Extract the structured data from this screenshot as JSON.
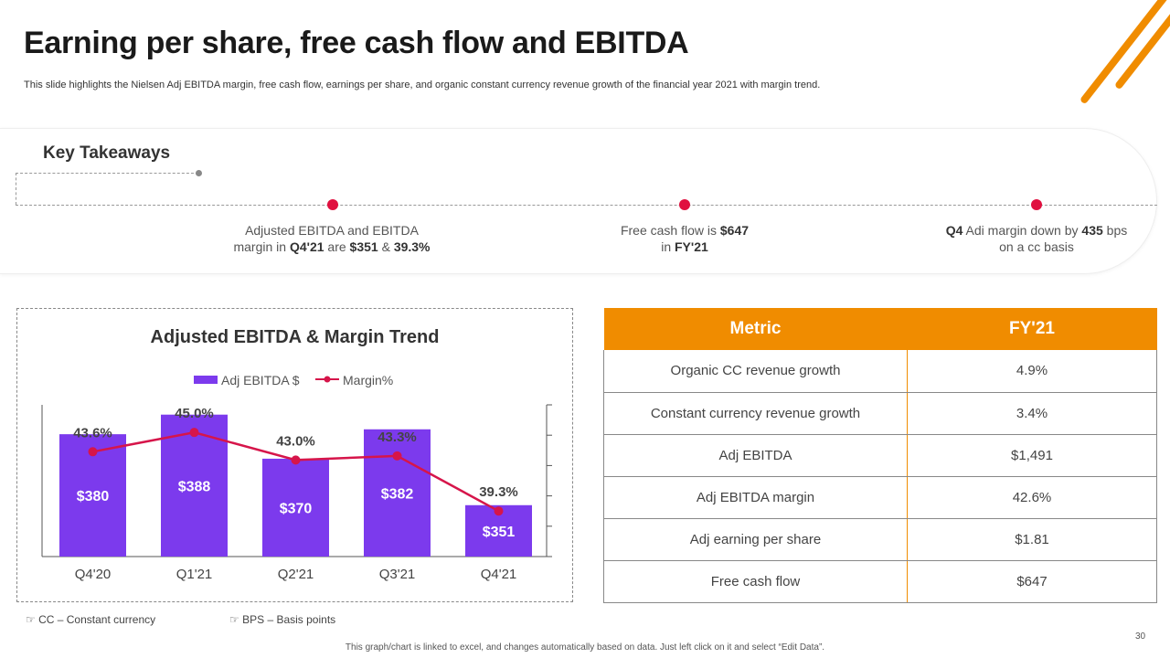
{
  "title": "Earning per share, free cash flow and EBITDA",
  "subtitle": "This slide highlights the Nielsen Adj EBITDA  margin, free cash flow, earnings per share, and organic constant currency revenue growth of the financial year 2021 with margin trend.",
  "key_takeaways": {
    "heading": "Key Takeaways",
    "items": [
      {
        "line1": "Adjusted EBITDA and EBITDA",
        "l2a": "margin in ",
        "l2b": "Q4'21",
        "l2c": " are ",
        "l2d": "$351",
        "l2e": " & ",
        "l2f": "39.3%"
      },
      {
        "line1a": "Free cash flow is ",
        "line1b": "$647",
        "l2a": "in ",
        "l2b": "FY'21"
      },
      {
        "line1a": "Q4",
        "line1b": " Adi margin down by ",
        "line1c": "435",
        "line1d": " bps",
        "line2": "on a cc basis"
      }
    ]
  },
  "chart_data": {
    "type": "bar",
    "title": "Adjusted  EBITDA & Margin Trend",
    "categories": [
      "Q4'20",
      "Q1'21",
      "Q2'21",
      "Q3'21",
      "Q4'21"
    ],
    "series": [
      {
        "name": "Adj EBITDA $",
        "kind": "bar",
        "values": [
          380,
          388,
          370,
          382,
          351
        ],
        "labels": [
          "$380",
          "$388",
          "$370",
          "$382",
          "$351"
        ]
      },
      {
        "name": "Margin%",
        "kind": "line",
        "values": [
          43.6,
          45.0,
          43.0,
          43.3,
          39.3
        ],
        "labels": [
          "43.6%",
          "45.0%",
          "43.0%",
          "43.3%",
          "39.3%"
        ]
      }
    ],
    "bar_ylim": [
      330,
      392
    ],
    "line_ylim": [
      36,
      47
    ],
    "legend": "top",
    "colors": {
      "bar": "#7c3aed",
      "line": "#d6154a"
    }
  },
  "table": {
    "headers": [
      "Metric",
      "FY'21"
    ],
    "rows": [
      [
        "Organic CC revenue  growth",
        "4.9%"
      ],
      [
        "Constant currency  revenue  growth",
        "3.4%"
      ],
      [
        "Adj EBITDA",
        "$1,491"
      ],
      [
        "Adj EBITDA margin",
        "42.6%"
      ],
      [
        "Adj earning per share",
        "$1.81"
      ],
      [
        "Free cash flow",
        "$647"
      ]
    ]
  },
  "notes": [
    "CC – Constant currency",
    "BPS – Basis points"
  ],
  "footer": "This graph/chart is linked to excel,  and changes automatically based on data. Just left click on it and select “Edit Data”.",
  "page_number": "30",
  "colors": {
    "accent": "#f08c00",
    "dot": "#e0103f"
  }
}
